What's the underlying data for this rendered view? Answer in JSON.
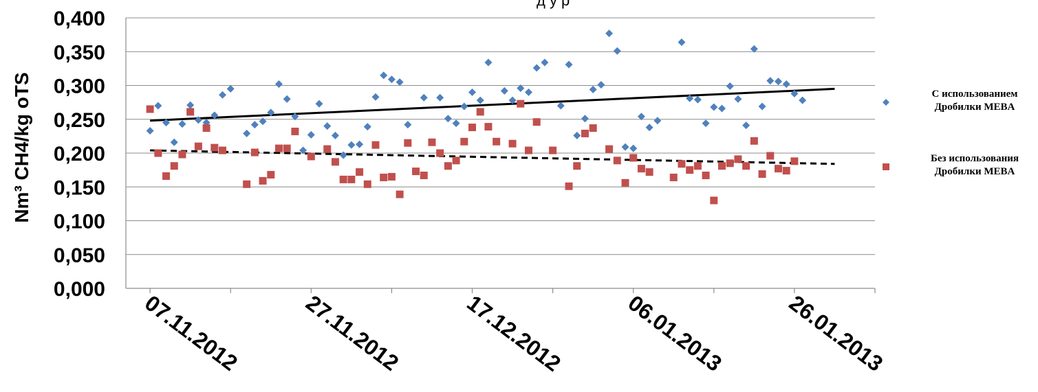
{
  "chart_data": {
    "type": "scatter",
    "title_fragment": "д       у      р",
    "ylabel": "Nm³ CH4/kg oTS",
    "ylim": [
      0,
      0.4
    ],
    "yticks": [
      "0,000",
      "0,050",
      "0,100",
      "0,150",
      "0,200",
      "0,250",
      "0,300",
      "0,350",
      "0,400"
    ],
    "ytick_values": [
      0,
      0.05,
      0.1,
      0.15,
      0.2,
      0.25,
      0.3,
      0.35,
      0.4
    ],
    "xlim": [
      "2012-11-04",
      "2013-02-05"
    ],
    "xticks": [
      "07.11.2012",
      "27.11.2012",
      "17.12.2012",
      "06.01.2013",
      "26.01.2013"
    ],
    "xtick_dates": [
      "2012-11-07",
      "2012-11-27",
      "2012-12-17",
      "2013-01-06",
      "2013-01-26"
    ],
    "grid": "horizontal",
    "legend_position": "right",
    "series": [
      {
        "name": "С использованием Дробилки MEBA",
        "legend_lines": [
          "С использованием",
          "Дробилки MEBA"
        ],
        "marker": "diamond",
        "color": "#4f81bd",
        "trendline": {
          "style": "solid",
          "start": [
            "2012-11-07",
            0.248
          ],
          "end": [
            "2013-01-31",
            0.295
          ]
        },
        "points": [
          [
            "2012-11-07",
            0.233
          ],
          [
            "2012-11-08",
            0.27
          ],
          [
            "2012-11-09",
            0.245
          ],
          [
            "2012-11-10",
            0.216
          ],
          [
            "2012-11-11",
            0.243
          ],
          [
            "2012-11-12",
            0.271
          ],
          [
            "2012-11-13",
            0.249
          ],
          [
            "2012-11-14",
            0.245
          ],
          [
            "2012-11-15",
            0.256
          ],
          [
            "2012-11-16",
            0.286
          ],
          [
            "2012-11-17",
            0.295
          ],
          [
            "2012-11-19",
            0.229
          ],
          [
            "2012-11-20",
            0.242
          ],
          [
            "2012-11-21",
            0.247
          ],
          [
            "2012-11-22",
            0.26
          ],
          [
            "2012-11-23",
            0.302
          ],
          [
            "2012-11-24",
            0.28
          ],
          [
            "2012-11-25",
            0.254
          ],
          [
            "2012-11-26",
            0.204
          ],
          [
            "2012-11-27",
            0.227
          ],
          [
            "2012-11-28",
            0.273
          ],
          [
            "2012-11-29",
            0.24
          ],
          [
            "2012-11-30",
            0.226
          ],
          [
            "2012-12-01",
            0.197
          ],
          [
            "2012-12-02",
            0.212
          ],
          [
            "2012-12-03",
            0.213
          ],
          [
            "2012-12-04",
            0.239
          ],
          [
            "2012-12-05",
            0.283
          ],
          [
            "2012-12-06",
            0.315
          ],
          [
            "2012-12-07",
            0.309
          ],
          [
            "2012-12-08",
            0.305
          ],
          [
            "2012-12-09",
            0.242
          ],
          [
            "2012-12-11",
            0.282
          ],
          [
            "2012-12-13",
            0.282
          ],
          [
            "2012-12-14",
            0.251
          ],
          [
            "2012-12-15",
            0.244
          ],
          [
            "2012-12-16",
            0.269
          ],
          [
            "2012-12-17",
            0.29
          ],
          [
            "2012-12-18",
            0.278
          ],
          [
            "2012-12-19",
            0.334
          ],
          [
            "2012-12-21",
            0.292
          ],
          [
            "2012-12-22",
            0.278
          ],
          [
            "2012-12-23",
            0.296
          ],
          [
            "2012-12-24",
            0.29
          ],
          [
            "2012-12-25",
            0.326
          ],
          [
            "2012-12-26",
            0.334
          ],
          [
            "2012-12-28",
            0.27
          ],
          [
            "2012-12-29",
            0.331
          ],
          [
            "2012-12-30",
            0.226
          ],
          [
            "2012-12-31",
            0.251
          ],
          [
            "2013-01-01",
            0.294
          ],
          [
            "2013-01-02",
            0.301
          ],
          [
            "2013-01-03",
            0.377
          ],
          [
            "2013-01-04",
            0.351
          ],
          [
            "2013-01-05",
            0.209
          ],
          [
            "2013-01-06",
            0.207
          ],
          [
            "2013-01-07",
            0.254
          ],
          [
            "2013-01-08",
            0.238
          ],
          [
            "2013-01-09",
            0.248
          ],
          [
            "2013-01-12",
            0.364
          ],
          [
            "2013-01-13",
            0.281
          ],
          [
            "2013-01-14",
            0.279
          ],
          [
            "2013-01-15",
            0.244
          ],
          [
            "2013-01-16",
            0.268
          ],
          [
            "2013-01-17",
            0.266
          ],
          [
            "2013-01-18",
            0.299
          ],
          [
            "2013-01-19",
            0.28
          ],
          [
            "2013-01-20",
            0.241
          ],
          [
            "2013-01-21",
            0.354
          ],
          [
            "2013-01-22",
            0.269
          ],
          [
            "2013-01-23",
            0.307
          ],
          [
            "2013-01-24",
            0.306
          ],
          [
            "2013-01-25",
            0.302
          ],
          [
            "2013-01-26",
            0.288
          ],
          [
            "2013-01-27",
            0.278
          ]
        ]
      },
      {
        "name": "Без использования Дробилки MEBA",
        "legend_lines": [
          "Без использования",
          "Дробилки MEBA"
        ],
        "marker": "square",
        "color": "#c0504d",
        "trendline": {
          "style": "dashed",
          "start": [
            "2012-11-07",
            0.204
          ],
          "end": [
            "2013-01-31",
            0.184
          ]
        },
        "points": [
          [
            "2012-11-07",
            0.265
          ],
          [
            "2012-11-08",
            0.2
          ],
          [
            "2012-11-09",
            0.166
          ],
          [
            "2012-11-10",
            0.181
          ],
          [
            "2012-11-11",
            0.198
          ],
          [
            "2012-11-12",
            0.261
          ],
          [
            "2012-11-13",
            0.21
          ],
          [
            "2012-11-14",
            0.237
          ],
          [
            "2012-11-15",
            0.208
          ],
          [
            "2012-11-16",
            0.204
          ],
          [
            "2012-11-19",
            0.154
          ],
          [
            "2012-11-20",
            0.201
          ],
          [
            "2012-11-21",
            0.159
          ],
          [
            "2012-11-22",
            0.168
          ],
          [
            "2012-11-23",
            0.207
          ],
          [
            "2012-11-24",
            0.207
          ],
          [
            "2012-11-25",
            0.232
          ],
          [
            "2012-11-27",
            0.195
          ],
          [
            "2012-11-29",
            0.206
          ],
          [
            "2012-11-30",
            0.187
          ],
          [
            "2012-12-01",
            0.161
          ],
          [
            "2012-12-02",
            0.161
          ],
          [
            "2012-12-03",
            0.172
          ],
          [
            "2012-12-04",
            0.154
          ],
          [
            "2012-12-05",
            0.212
          ],
          [
            "2012-12-06",
            0.164
          ],
          [
            "2012-12-07",
            0.165
          ],
          [
            "2012-12-08",
            0.139
          ],
          [
            "2012-12-09",
            0.215
          ],
          [
            "2012-12-10",
            0.173
          ],
          [
            "2012-12-11",
            0.167
          ],
          [
            "2012-12-12",
            0.216
          ],
          [
            "2012-12-13",
            0.2
          ],
          [
            "2012-12-14",
            0.181
          ],
          [
            "2012-12-15",
            0.189
          ],
          [
            "2012-12-16",
            0.217
          ],
          [
            "2012-12-17",
            0.238
          ],
          [
            "2012-12-18",
            0.261
          ],
          [
            "2012-12-19",
            0.239
          ],
          [
            "2012-12-20",
            0.217
          ],
          [
            "2012-12-22",
            0.214
          ],
          [
            "2012-12-23",
            0.273
          ],
          [
            "2012-12-24",
            0.204
          ],
          [
            "2012-12-25",
            0.246
          ],
          [
            "2012-12-27",
            0.204
          ],
          [
            "2012-12-29",
            0.151
          ],
          [
            "2012-12-30",
            0.181
          ],
          [
            "2012-12-31",
            0.229
          ],
          [
            "2013-01-01",
            0.237
          ],
          [
            "2013-01-03",
            0.206
          ],
          [
            "2013-01-04",
            0.189
          ],
          [
            "2013-01-05",
            0.156
          ],
          [
            "2013-01-06",
            0.193
          ],
          [
            "2013-01-07",
            0.177
          ],
          [
            "2013-01-08",
            0.172
          ],
          [
            "2013-01-11",
            0.164
          ],
          [
            "2013-01-12",
            0.184
          ],
          [
            "2013-01-13",
            0.175
          ],
          [
            "2013-01-14",
            0.181
          ],
          [
            "2013-01-15",
            0.167
          ],
          [
            "2013-01-16",
            0.13
          ],
          [
            "2013-01-17",
            0.181
          ],
          [
            "2013-01-18",
            0.185
          ],
          [
            "2013-01-19",
            0.191
          ],
          [
            "2013-01-20",
            0.181
          ],
          [
            "2013-01-21",
            0.218
          ],
          [
            "2013-01-22",
            0.169
          ],
          [
            "2013-01-23",
            0.196
          ],
          [
            "2013-01-24",
            0.177
          ],
          [
            "2013-01-25",
            0.174
          ],
          [
            "2013-01-26",
            0.188
          ]
        ]
      }
    ]
  }
}
